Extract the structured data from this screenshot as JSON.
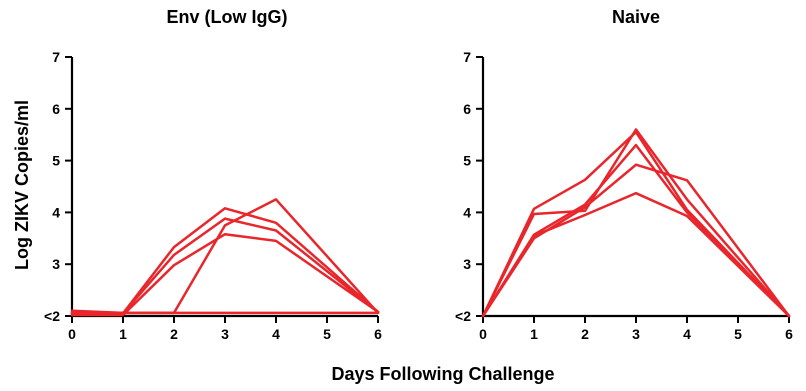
{
  "figure": {
    "ylabel": "Log ZIKV Copies/ml",
    "xlabel": "Days Following Challenge"
  },
  "colors": {
    "series": "#e8262b",
    "axis": "#000000"
  },
  "chart_data": [
    {
      "type": "line",
      "title": "Env (Low IgG)",
      "xlabel": "Days Following Challenge",
      "ylabel": "Log ZIKV Copies/ml",
      "xlim": [
        0,
        6
      ],
      "ylim": [
        2,
        7
      ],
      "xticks": [
        0,
        1,
        2,
        3,
        4,
        5,
        6
      ],
      "xtick_labels": [
        "0",
        "1",
        "2",
        "3",
        "4",
        "5",
        "6"
      ],
      "yticks": [
        2,
        3,
        4,
        5,
        6,
        7
      ],
      "ytick_labels": [
        "<2",
        "3",
        "4",
        "5",
        "6",
        "7"
      ],
      "grid": false,
      "series": [
        {
          "x": [
            0,
            1,
            2,
            3,
            4,
            6
          ],
          "y": [
            2.05,
            2.05,
            3.33,
            4.08,
            3.8,
            2.08
          ]
        },
        {
          "x": [
            0,
            1,
            2,
            3,
            4,
            6
          ],
          "y": [
            2.05,
            2.05,
            3.18,
            3.88,
            3.65,
            2.08
          ]
        },
        {
          "x": [
            0,
            1,
            2,
            3,
            4,
            6
          ],
          "y": [
            2.02,
            2.02,
            2.98,
            3.58,
            3.45,
            2.08
          ]
        },
        {
          "x": [
            0,
            1,
            2,
            3,
            4,
            6
          ],
          "y": [
            2.06,
            2.06,
            2.06,
            3.75,
            4.25,
            2.06
          ]
        },
        {
          "x": [
            0,
            1,
            2,
            3,
            4,
            6
          ],
          "y": [
            2.1,
            2.06,
            2.06,
            2.06,
            2.06,
            2.06
          ]
        }
      ]
    },
    {
      "type": "line",
      "title": "Naive",
      "xlabel": "Days Following Challenge",
      "ylabel": "",
      "xlim": [
        0,
        6
      ],
      "ylim": [
        2,
        7
      ],
      "xticks": [
        0,
        1,
        2,
        3,
        4,
        5,
        6
      ],
      "xtick_labels": [
        "0",
        "1",
        "2",
        "3",
        "4",
        "5",
        "6"
      ],
      "yticks": [
        2,
        3,
        4,
        5,
        6,
        7
      ],
      "ytick_labels": [
        "<2",
        "3",
        "4",
        "5",
        "6",
        "7"
      ],
      "grid": false,
      "series": [
        {
          "x": [
            0,
            1,
            2,
            3,
            4,
            6
          ],
          "y": [
            2.0,
            4.07,
            4.63,
            5.55,
            4.05,
            2.0
          ]
        },
        {
          "x": [
            0,
            1,
            2,
            3,
            4,
            6
          ],
          "y": [
            2.0,
            3.97,
            4.03,
            5.6,
            4.25,
            2.0
          ]
        },
        {
          "x": [
            0,
            1,
            2,
            3,
            4,
            6
          ],
          "y": [
            2.0,
            3.57,
            4.15,
            5.3,
            4.0,
            2.0
          ]
        },
        {
          "x": [
            0,
            1,
            2,
            3,
            4,
            6
          ],
          "y": [
            2.0,
            3.5,
            4.1,
            4.92,
            4.62,
            2.0
          ]
        },
        {
          "x": [
            0,
            1,
            2,
            3,
            4,
            6
          ],
          "y": [
            2.0,
            3.55,
            3.95,
            4.37,
            3.93,
            2.0
          ]
        }
      ]
    }
  ]
}
